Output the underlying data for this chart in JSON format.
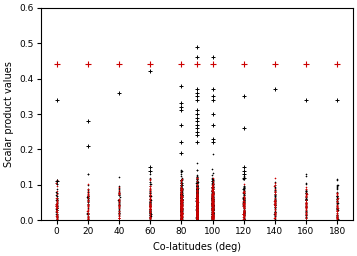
{
  "title": "",
  "xlabel": "Co-latitudes (deg)",
  "ylabel": "Scalar product values",
  "xlim": [
    -10,
    190
  ],
  "ylim": [
    0,
    0.6
  ],
  "xticks": [
    0,
    20,
    40,
    60,
    80,
    100,
    120,
    140,
    160,
    180
  ],
  "yticks": [
    0.0,
    0.1,
    0.2,
    0.3,
    0.4,
    0.5,
    0.6
  ],
  "colatitudes": [
    0,
    20,
    40,
    60,
    80,
    90,
    100,
    120,
    140,
    160,
    180
  ],
  "red_values": [
    0.44,
    0.44,
    0.44,
    0.44,
    0.44,
    0.44,
    0.44,
    0.44,
    0.44,
    0.44,
    0.44
  ],
  "black_isolated": {
    "0": [
      0.34,
      0.11
    ],
    "20": [
      0.28,
      0.21
    ],
    "40": [
      0.36
    ],
    "60": [
      0.42,
      0.15,
      0.14
    ],
    "80": [
      0.38,
      0.33,
      0.32,
      0.31,
      0.27,
      0.22,
      0.19
    ],
    "90": [
      0.49,
      0.46,
      0.37,
      0.36,
      0.35,
      0.34,
      0.31,
      0.3,
      0.29,
      0.28,
      0.27,
      0.26,
      0.25,
      0.24,
      0.22
    ],
    "100": [
      0.46,
      0.37,
      0.35,
      0.34,
      0.3,
      0.27,
      0.23,
      0.22
    ],
    "120": [
      0.35,
      0.26,
      0.15,
      0.14,
      0.13,
      0.12
    ],
    "140": [
      0.37
    ],
    "160": [
      0.34
    ],
    "180": [
      0.34
    ]
  },
  "n_dense_black": {
    "0": 50,
    "20": 40,
    "40": 40,
    "60": 80,
    "80": 250,
    "90": 350,
    "100": 220,
    "120": 90,
    "140": 50,
    "160": 50,
    "180": 50
  },
  "n_dense_red": {
    "0": 35,
    "20": 30,
    "40": 30,
    "60": 60,
    "80": 180,
    "90": 250,
    "100": 160,
    "120": 60,
    "140": 35,
    "160": 35,
    "180": 35
  },
  "black_color": "#000000",
  "red_color": "#cc0000",
  "marker_size": 2,
  "marker": "+"
}
